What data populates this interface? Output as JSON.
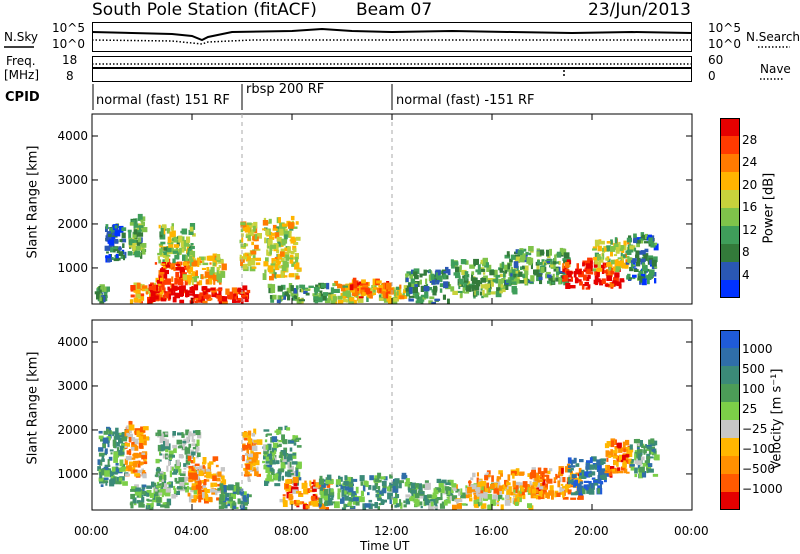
{
  "header": {
    "station": "South Pole Station (fitACF)",
    "beam": "Beam 07",
    "date": "23/Jun/2013"
  },
  "top_panel": {
    "left_label": "N.Sky",
    "right_label": "N.Search",
    "left_ticks": [
      "10^5",
      "10^0"
    ],
    "right_ticks": [
      "10^5",
      "10^0"
    ]
  },
  "freq_panel": {
    "left_label_1": "Freq.",
    "left_label_2": "[MHz]",
    "right_label": "Nave",
    "left_ticks": [
      "18",
      "8"
    ],
    "right_ticks": [
      "60",
      "0"
    ]
  },
  "cpid": {
    "label": "CPID",
    "segments": [
      "normal (fast) 151 RF",
      "rbsp 200 RF",
      "normal (fast) -151 RF"
    ],
    "segment_start_hours": [
      0,
      6,
      12
    ]
  },
  "colors": {
    "power": [
      "#0032ff",
      "#2a57b4",
      "#337a3a",
      "#3f9e5a",
      "#7fc34a",
      "#c8d23c",
      "#ffb400",
      "#ff7a00",
      "#ff3a00",
      "#e60000"
    ],
    "velocity": [
      "#1f5bd9",
      "#2f6ea8",
      "#3b8a78",
      "#4c9c57",
      "#7ccf48",
      "#c7c7c7",
      "#ffb700",
      "#ff9000",
      "#ff5a00",
      "#e50000"
    ]
  },
  "chart_data": [
    {
      "type": "heatmap",
      "title": "Power",
      "xlabel": "Time UT",
      "ylabel": "Slant Range [km]",
      "colorbar_label": "Power [dB]",
      "xlim": [
        0,
        24
      ],
      "ylim": [
        180,
        4500
      ],
      "x_ticks": [
        "00:00",
        "04:00",
        "08:00",
        "12:00",
        "16:00",
        "20:00",
        "00:00"
      ],
      "y_ticks": [
        "1000",
        "2000",
        "3000",
        "4000"
      ],
      "colorbar_ticks": [
        "4",
        "8",
        "12",
        "16",
        "20",
        "24",
        "28"
      ],
      "regions": [
        {
          "t0": 0.1,
          "t1": 0.5,
          "r0": 180,
          "r1": 500,
          "level": 0.3
        },
        {
          "t0": 0.5,
          "t1": 1.3,
          "r0": 1100,
          "r1": 1900,
          "level": 0.2
        },
        {
          "t0": 1.4,
          "t1": 2.0,
          "r0": 1200,
          "r1": 2100,
          "level": 0.35
        },
        {
          "t0": 1.5,
          "t1": 2.8,
          "r0": 180,
          "r1": 600,
          "level": 0.7
        },
        {
          "t0": 2.2,
          "t1": 4.5,
          "r0": 180,
          "r1": 500,
          "level": 0.95
        },
        {
          "t0": 2.5,
          "t1": 3.8,
          "r0": 600,
          "r1": 1100,
          "level": 0.85
        },
        {
          "t0": 2.6,
          "t1": 4.0,
          "r0": 1100,
          "r1": 1900,
          "level": 0.45
        },
        {
          "t0": 3.6,
          "t1": 5.2,
          "r0": 600,
          "r1": 1200,
          "level": 0.6
        },
        {
          "t0": 4.0,
          "t1": 6.2,
          "r0": 180,
          "r1": 500,
          "level": 0.9
        },
        {
          "t0": 5.9,
          "t1": 6.6,
          "r0": 900,
          "r1": 2000,
          "level": 0.6
        },
        {
          "t0": 6.8,
          "t1": 8.2,
          "r0": 700,
          "r1": 2100,
          "level": 0.55
        },
        {
          "t0": 7.0,
          "t1": 9.5,
          "r0": 180,
          "r1": 550,
          "level": 0.35
        },
        {
          "t0": 9.5,
          "t1": 12.5,
          "r0": 180,
          "r1": 600,
          "level": 0.55
        },
        {
          "t0": 10.2,
          "t1": 11.8,
          "r0": 300,
          "r1": 650,
          "level": 0.8
        },
        {
          "t0": 12.5,
          "t1": 14.3,
          "r0": 180,
          "r1": 900,
          "level": 0.3
        },
        {
          "t0": 14.3,
          "t1": 17.0,
          "r0": 300,
          "r1": 1100,
          "level": 0.4
        },
        {
          "t0": 16.5,
          "t1": 19.0,
          "r0": 600,
          "r1": 1400,
          "level": 0.35
        },
        {
          "t0": 18.8,
          "t1": 21.2,
          "r0": 500,
          "r1": 1100,
          "level": 0.92
        },
        {
          "t0": 20.0,
          "t1": 21.5,
          "r0": 900,
          "r1": 1600,
          "level": 0.55
        },
        {
          "t0": 21.3,
          "t1": 22.5,
          "r0": 600,
          "r1": 1700,
          "level": 0.25
        }
      ]
    },
    {
      "type": "heatmap",
      "title": "Velocity",
      "xlabel": "Time UT",
      "ylabel": "Slant Range [km]",
      "colorbar_label": "Velocity [m s⁻¹]",
      "xlim": [
        0,
        24
      ],
      "ylim": [
        180,
        4500
      ],
      "x_ticks": [
        "00:00",
        "04:00",
        "08:00",
        "12:00",
        "16:00",
        "20:00",
        "00:00"
      ],
      "y_ticks": [
        "1000",
        "2000",
        "3000",
        "4000"
      ],
      "colorbar_ticks": [
        "1000",
        "500",
        "100",
        "25",
        "−25",
        "−100",
        "−500",
        "−1000"
      ],
      "regions": [
        {
          "t0": 0.2,
          "t1": 1.3,
          "r0": 700,
          "r1": 1950,
          "level": 0.3
        },
        {
          "t0": 1.3,
          "t1": 2.1,
          "r0": 900,
          "r1": 2100,
          "level": 0.7
        },
        {
          "t0": 1.5,
          "t1": 3.0,
          "r0": 180,
          "r1": 700,
          "level": 0.35
        },
        {
          "t0": 2.5,
          "t1": 4.2,
          "r0": 400,
          "r1": 1900,
          "level": 0.4
        },
        {
          "t0": 3.8,
          "t1": 5.2,
          "r0": 300,
          "r1": 1300,
          "level": 0.7
        },
        {
          "t0": 5.0,
          "t1": 6.2,
          "r0": 180,
          "r1": 700,
          "level": 0.3
        },
        {
          "t0": 6.0,
          "t1": 6.6,
          "r0": 800,
          "r1": 1900,
          "level": 0.7
        },
        {
          "t0": 6.8,
          "t1": 8.2,
          "r0": 700,
          "r1": 2000,
          "level": 0.35
        },
        {
          "t0": 7.5,
          "t1": 9.5,
          "r0": 180,
          "r1": 800,
          "level": 0.75
        },
        {
          "t0": 9.0,
          "t1": 12.5,
          "r0": 180,
          "r1": 900,
          "level": 0.3
        },
        {
          "t0": 12.5,
          "t1": 14.3,
          "r0": 180,
          "r1": 800,
          "level": 0.4
        },
        {
          "t0": 14.3,
          "t1": 17.5,
          "r0": 180,
          "r1": 700,
          "level": 0.55
        },
        {
          "t0": 15.0,
          "t1": 18.0,
          "r0": 500,
          "r1": 1000,
          "level": 0.7
        },
        {
          "t0": 17.5,
          "t1": 19.5,
          "r0": 400,
          "r1": 1100,
          "level": 0.75
        },
        {
          "t0": 19.0,
          "t1": 20.5,
          "r0": 500,
          "r1": 1300,
          "level": 0.15
        },
        {
          "t0": 20.5,
          "t1": 21.5,
          "r0": 900,
          "r1": 1700,
          "level": 0.8
        },
        {
          "t0": 21.5,
          "t1": 22.5,
          "r0": 900,
          "r1": 1700,
          "level": 0.35
        }
      ]
    }
  ]
}
